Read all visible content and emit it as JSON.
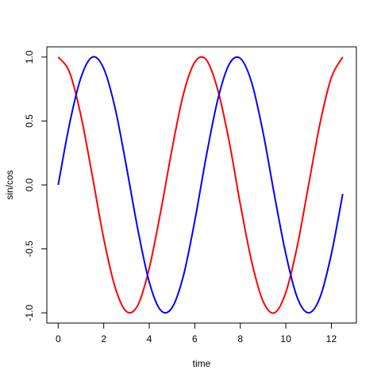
{
  "chart_data": {
    "type": "line",
    "xlabel": "time",
    "ylabel": "sin/cos",
    "xlim": [
      -0.5,
      13.1
    ],
    "ylim": [
      -1.08,
      1.08
    ],
    "xticks": [
      "0",
      "2",
      "4",
      "6",
      "8",
      "10",
      "12"
    ],
    "yticks": [
      "-1.0",
      "-0.5",
      "0.0",
      "0.5",
      "1.0"
    ],
    "grid": false,
    "legend": "none",
    "series": [
      {
        "color": "#ff0000",
        "x": [
          0,
          0.5,
          1,
          1.5,
          2,
          2.5,
          3,
          3.5,
          4,
          4.5,
          5,
          5.5,
          6,
          6.5,
          7,
          7.5,
          8,
          8.5,
          9,
          9.5,
          10,
          10.5,
          11,
          11.5,
          12,
          12.5
        ],
        "y": [
          1.0,
          0.88,
          0.54,
          0.07,
          -0.42,
          -0.8,
          -0.99,
          -0.94,
          -0.65,
          -0.21,
          0.28,
          0.71,
          0.96,
          0.98,
          0.75,
          0.35,
          -0.15,
          -0.6,
          -0.91,
          -1.0,
          -0.84,
          -0.48,
          0.0,
          0.48,
          0.84,
          1.0
        ]
      },
      {
        "color": "#0000ff",
        "x": [
          0,
          0.5,
          1,
          1.5,
          2,
          2.5,
          3,
          3.5,
          4,
          4.5,
          5,
          5.5,
          6,
          6.5,
          7,
          7.5,
          8,
          8.5,
          9,
          9.5,
          10,
          10.5,
          11,
          11.5,
          12,
          12.5
        ],
        "y": [
          0.0,
          0.48,
          0.84,
          1.0,
          0.91,
          0.6,
          0.14,
          -0.35,
          -0.76,
          -0.98,
          -0.96,
          -0.71,
          -0.28,
          0.22,
          0.66,
          0.94,
          0.99,
          0.8,
          0.41,
          -0.08,
          -0.54,
          -0.88,
          -1.0,
          -0.88,
          -0.54,
          -0.07
        ]
      }
    ]
  }
}
